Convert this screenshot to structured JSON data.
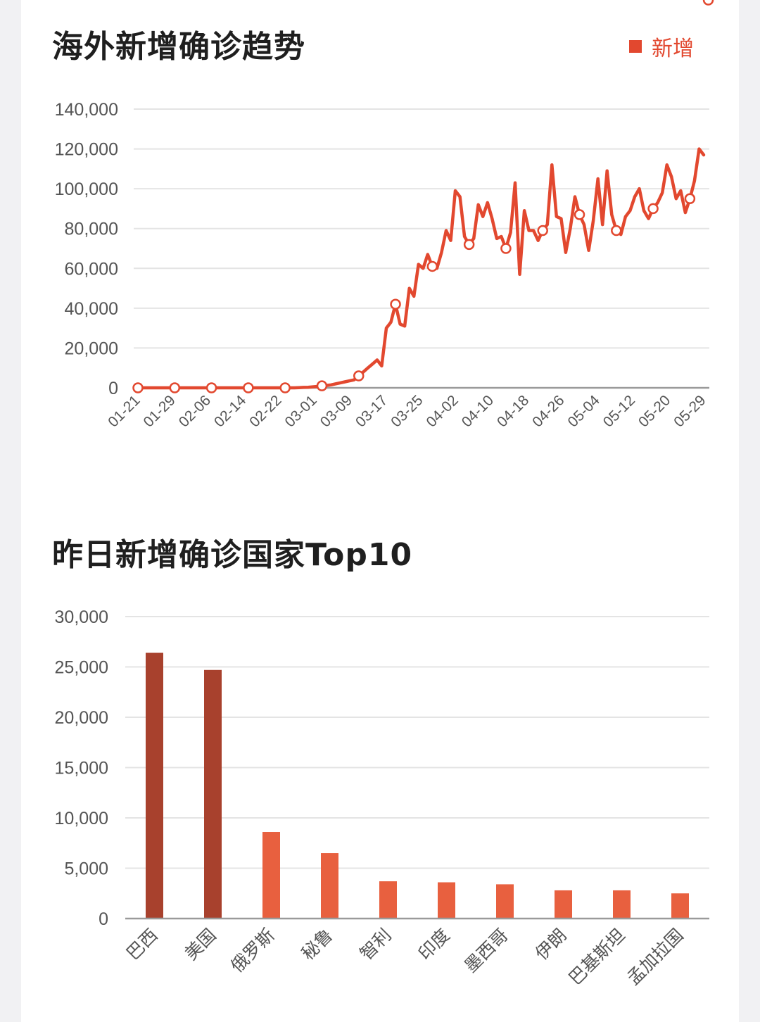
{
  "chart_data": [
    {
      "type": "line",
      "title": "海外新增确诊趋势",
      "legend": [
        {
          "name": "新增",
          "color": "#e2482f"
        }
      ],
      "legend_position": "top-right",
      "x_ticks": [
        "01-21",
        "01-29",
        "02-06",
        "02-14",
        "02-22",
        "03-01",
        "03-09",
        "03-17",
        "03-25",
        "04-02",
        "04-10",
        "04-18",
        "04-26",
        "05-04",
        "05-12",
        "05-20",
        "05-29"
      ],
      "y_ticks": [
        "140,000",
        "120,000",
        "100,000",
        "80,000",
        "60,000",
        "40,000",
        "20,000",
        "0"
      ],
      "ylim": [
        0,
        140000
      ],
      "grid": true,
      "series": [
        {
          "name": "新增",
          "color": "#e2482f",
          "values": [
            0,
            0,
            0,
            0,
            0,
            0,
            0,
            0,
            0,
            0,
            0,
            0,
            0,
            0,
            0,
            0,
            0,
            0,
            0,
            0,
            0,
            0,
            0,
            0,
            0,
            0,
            0,
            0,
            0,
            0,
            0,
            0,
            0,
            0,
            0,
            100,
            200,
            300,
            500,
            700,
            1000,
            1200,
            1500,
            2000,
            2500,
            3000,
            3500,
            4000,
            6000,
            8000,
            10000,
            12000,
            14000,
            11000,
            30000,
            33000,
            42000,
            32000,
            31000,
            50000,
            46000,
            62000,
            60000,
            67000,
            61000,
            60000,
            68000,
            79000,
            74000,
            99000,
            96000,
            76000,
            72000,
            75000,
            92000,
            86000,
            93000,
            85000,
            75000,
            76000,
            70000,
            78000,
            103000,
            57000,
            89000,
            79000,
            79000,
            74000,
            79000,
            82000,
            112000,
            86000,
            85000,
            68000,
            80000,
            96000,
            87000,
            82000,
            69000,
            84000,
            105000,
            82000,
            109000,
            87000,
            79000,
            77000,
            86000,
            89000,
            96000,
            100000,
            89000,
            85000,
            90000,
            93000,
            98000,
            112000,
            106000,
            95000,
            99000,
            88000,
            95000,
            104000,
            120000,
            117000
          ],
          "marked_indices": [
            0,
            8,
            16,
            24,
            32,
            40,
            48,
            56,
            64,
            72,
            80,
            88,
            96,
            104,
            112,
            120,
            124
          ]
        }
      ]
    },
    {
      "type": "bar",
      "title": "昨日新增确诊国家Top10",
      "categories": [
        "巴西",
        "美国",
        "俄罗斯",
        "秘鲁",
        "智利",
        "印度",
        "墨西哥",
        "伊朗",
        "巴基斯坦",
        "孟加拉国"
      ],
      "values": [
        26400,
        24700,
        8600,
        6500,
        3700,
        3600,
        3400,
        2800,
        2800,
        2500
      ],
      "colors": [
        "#a8412d",
        "#a8412d",
        "#e8603f",
        "#e8603f",
        "#e8603f",
        "#e8603f",
        "#e8603f",
        "#e8603f",
        "#e8603f",
        "#e8603f"
      ],
      "y_ticks": [
        "30,000",
        "25,000",
        "20,000",
        "15,000",
        "10,000",
        "5,000",
        "0"
      ],
      "ylim": [
        0,
        30000
      ],
      "grid": true
    }
  ]
}
